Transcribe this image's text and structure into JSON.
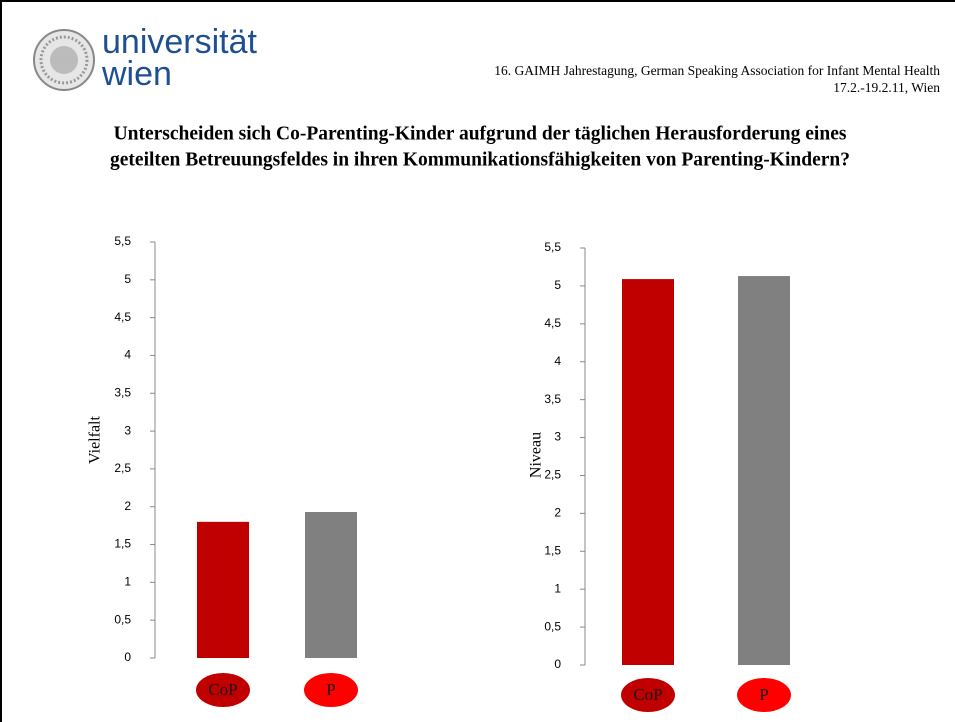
{
  "header": {
    "logo": [
      "universität",
      "wien"
    ],
    "conference": "16. GAIMH Jahrestagung, German Speaking Association for Infant Mental Health",
    "date": "17.2.-19.2.11, Wien"
  },
  "title": [
    "Unterscheiden sich Co-Parenting-Kinder aufgrund der täglichen Herausforderung eines",
    "geteilten Betreuungsfeldes in ihren Kommunikationsfähigkeiten von Parenting-Kindern?"
  ],
  "chart_data": [
    {
      "type": "bar",
      "ylabel": "Vielfalt",
      "categories": [
        "CoP",
        "P"
      ],
      "values": [
        1.8,
        1.93
      ],
      "colors": [
        "#c00000",
        "#808080"
      ],
      "label_colors": [
        "#c00000",
        "#ff0000"
      ],
      "ylim": [
        0,
        5.5
      ],
      "yticks": [
        0,
        {
          "value": 0.5,
          "label": "0,5"
        },
        1,
        {
          "value": 1.5,
          "label": "1,5"
        },
        2,
        {
          "value": 2.5,
          "label": "2,5"
        },
        3,
        {
          "value": 3.5,
          "label": "3,5"
        },
        4,
        {
          "value": 4.5,
          "label": "4,5"
        },
        5,
        {
          "value": 5.5,
          "label": "5,5"
        }
      ]
    },
    {
      "type": "bar",
      "ylabel": "Niveau",
      "categories": [
        "CoP",
        "P"
      ],
      "values": [
        5.09,
        5.13
      ],
      "colors": [
        "#c00000",
        "#808080"
      ],
      "label_colors": [
        "#c00000",
        "#ff0000"
      ],
      "ylim": [
        0,
        5.5
      ],
      "yticks": [
        0,
        {
          "value": 0.5,
          "label": "0,5"
        },
        1,
        {
          "value": 1.5,
          "label": "1,5"
        },
        2,
        {
          "value": 2.5,
          "label": "2,5"
        },
        3,
        {
          "value": 3.5,
          "label": "3,5"
        },
        4,
        {
          "value": 4.5,
          "label": "4,5"
        },
        5,
        {
          "value": 5.5,
          "label": "5,5"
        }
      ]
    }
  ]
}
